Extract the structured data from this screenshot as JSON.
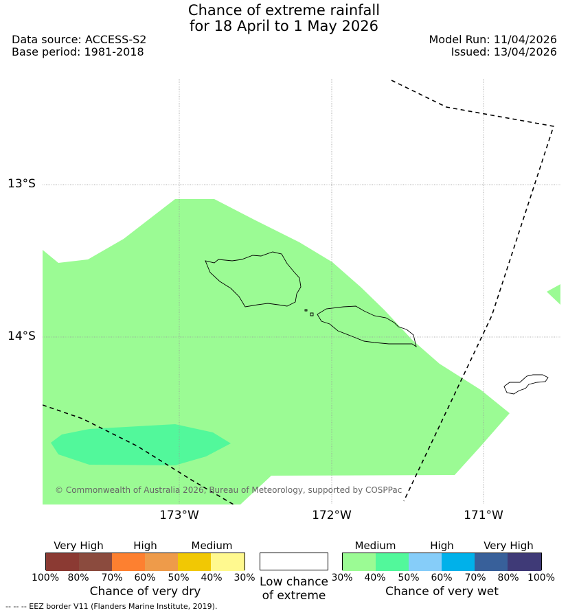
{
  "header": {
    "title_line1": "Chance of extreme rainfall",
    "title_line2": "for 18 April to 1 May 2026",
    "data_source": "Data source: ACCESS-S2",
    "base_period": "Base period: 1981-2018",
    "model_run": "Model Run: 11/04/2026",
    "issued": "Issued: 13/04/2026"
  },
  "map": {
    "lat_labels": [
      "13°S",
      "14°S"
    ],
    "lon_labels": [
      "173°W",
      "172°W",
      "171°W"
    ],
    "copyright": "© Commonwealth of Australia 2026, Bureau of Meteorology, supported by COSPPac",
    "colors": {
      "medium_wet": "#9bfb94",
      "high_wet": "#52f89b",
      "land_outline": "#000000",
      "grid": "#999999"
    }
  },
  "legend": {
    "dry": {
      "headings": [
        "Very High",
        "High",
        "Medium"
      ],
      "colors": [
        "#8b3a33",
        "#8b4b3e",
        "#fd8030",
        "#ee9b4a",
        "#f1c804",
        "#fff98f"
      ],
      "ticks": [
        "100%",
        "80%",
        "70%",
        "60%",
        "50%",
        "40%",
        "30%"
      ],
      "caption": "Chance of very dry"
    },
    "neutral": {
      "caption_line1": "Low chance",
      "caption_line2": "of extreme",
      "color": "#ffffff"
    },
    "wet": {
      "headings": [
        "Medium",
        "High",
        "Very High"
      ],
      "colors": [
        "#9bfb94",
        "#52f89b",
        "#86cdf9",
        "#00b1ea",
        "#38609a",
        "#3f3a77"
      ],
      "ticks": [
        "30%",
        "40%",
        "50%",
        "60%",
        "70%",
        "80%",
        "100%"
      ],
      "caption": "Chance of very wet"
    }
  },
  "footer": {
    "eez_note": "--  --  -- EEZ border V11 (Flanders Marine Institute, 2019)."
  }
}
